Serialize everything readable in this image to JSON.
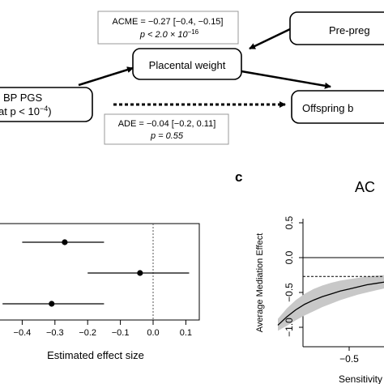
{
  "diagram": {
    "acme_line1": "ACME = −0.27 [−0.4, −0.15]",
    "acme_line2": "p < 2.0 × 10",
    "acme_exp": "−16",
    "ade_line1": "ADE = −0.04 [−0.2, 0.11]",
    "ade_line2": "p = 0.55",
    "placental": "Placental weight",
    "prepreg": "Pre-preg",
    "offspring": "Offspring b",
    "pgs_line1": "BP PGS",
    "pgs_line2": "at p < 10",
    "pgs_exp": "−4",
    "pgs_close": ")"
  },
  "panel_c": {
    "letter": "c",
    "title": "AC"
  },
  "chart_data": [
    {
      "type": "scatter",
      "xlabel": "Estimated effect size",
      "xticks": [
        "−0.4",
        "−0.3",
        "−0.2",
        "−0.1",
        "0.0",
        "0.1"
      ],
      "xtick_values": [
        -0.4,
        -0.3,
        -0.2,
        -0.1,
        0.0,
        0.1
      ],
      "reference_line": 0,
      "points": [
        {
          "est": -0.27,
          "lo": -0.4,
          "hi": -0.15
        },
        {
          "est": -0.04,
          "lo": -0.2,
          "hi": 0.11
        },
        {
          "est": -0.31,
          "lo": -0.46,
          "hi": -0.15
        }
      ]
    },
    {
      "type": "line",
      "ylabel": "Average Mediation Effect",
      "xlabel": "Sensitivity",
      "yticks": [
        "−1.0",
        "−0.5",
        "0.0",
        "0.5"
      ],
      "ytick_values": [
        -1.0,
        -0.5,
        0.0,
        0.5
      ],
      "xticks": [
        "−0.5"
      ],
      "xtick_values": [
        -0.5
      ],
      "estimate_line": -0.27,
      "x": [
        -0.9,
        -0.85,
        -0.8,
        -0.75,
        -0.7,
        -0.65,
        -0.6,
        -0.55,
        -0.5,
        -0.45,
        -0.4,
        -0.35,
        -0.3,
        -0.25
      ],
      "y": [
        -0.97,
        -0.85,
        -0.75,
        -0.67,
        -0.61,
        -0.56,
        -0.52,
        -0.48,
        -0.45,
        -0.42,
        -0.39,
        -0.37,
        -0.35,
        -0.33
      ],
      "ci_lo": [
        -1.05,
        -0.98,
        -0.9,
        -0.83,
        -0.77,
        -0.71,
        -0.66,
        -0.61,
        -0.57,
        -0.53,
        -0.5,
        -0.47,
        -0.44,
        -0.42
      ],
      "ci_hi": [
        -0.88,
        -0.73,
        -0.61,
        -0.52,
        -0.45,
        -0.4,
        -0.36,
        -0.33,
        -0.31,
        -0.29,
        -0.27,
        -0.26,
        -0.25,
        -0.24
      ]
    }
  ]
}
